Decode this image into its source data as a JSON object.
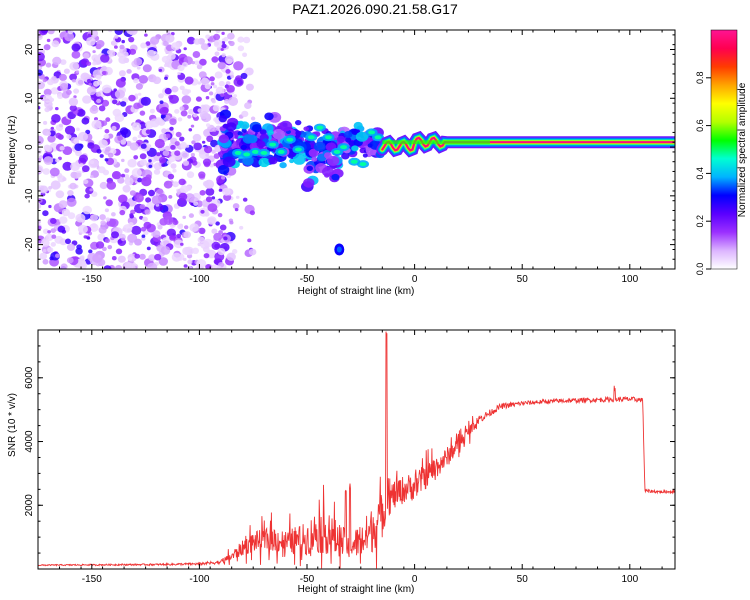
{
  "title": "PAZ1.2026.090.21.58.G17",
  "chart_data": [
    {
      "type": "heatmap",
      "title": "PAZ1.2026.090.21.58.G17",
      "xlabel": "Height of straight line (km)",
      "ylabel": "Frequency (Hz)",
      "xlim": [
        -175,
        121
      ],
      "ylim": [
        -25,
        24
      ],
      "xticks": [
        -150,
        -100,
        -50,
        0,
        50,
        100
      ],
      "xtick_labels": [
        "-150",
        "-100",
        "-50",
        "0",
        "50",
        "100"
      ],
      "yticks": [
        -20,
        -10,
        0,
        10,
        20
      ],
      "ytick_labels": [
        "-20",
        "-10",
        "0",
        "10",
        "20"
      ],
      "colorbar": {
        "label": "Normalized spectral amplitude",
        "range": [
          0,
          1
        ],
        "ticks": [
          0.0,
          0.2,
          0.4,
          0.6,
          0.8
        ],
        "tick_labels": [
          "0.0",
          "0.2",
          "0.4",
          "0.6",
          "0.8"
        ],
        "colormap": [
          "#ffffff",
          "#dcb4ff",
          "#9b30ff",
          "#5a00ff",
          "#0000ff",
          "#00b4ff",
          "#00ffd2",
          "#00ff00",
          "#b4ff00",
          "#ffff00",
          "#ffa500",
          "#ff3c00",
          "#ff0050",
          "#ff1493"
        ]
      },
      "features": [
        {
          "name": "noise scatter",
          "x_range": [
            -175,
            -85
          ],
          "freq_range": [
            -25,
            24
          ],
          "amplitude": "0.05-0.25"
        },
        {
          "name": "transition blobs",
          "x_range": [
            -90,
            -15
          ],
          "freq_range": [
            -8,
            8
          ],
          "amplitude": "0.2-0.5"
        },
        {
          "name": "isolated blob",
          "x": -35,
          "freq": -21,
          "amplitude": 0.2
        },
        {
          "name": "carrier line",
          "x_range": [
            -15,
            121
          ],
          "freq": 1,
          "amplitude": "0.6-1.0"
        }
      ]
    },
    {
      "type": "line",
      "xlabel": "Height of straight line (km)",
      "ylabel": "SNR (10 * v/v)",
      "xlim": [
        -175,
        121
      ],
      "ylim": [
        0,
        7500
      ],
      "xticks": [
        -150,
        -100,
        -50,
        0,
        50,
        100
      ],
      "xtick_labels": [
        "-150",
        "-100",
        "-50",
        "0",
        "50",
        "100"
      ],
      "yticks": [
        2000,
        4000,
        6000
      ],
      "ytick_labels": [
        "2000",
        "4000",
        "6000"
      ],
      "color": "#ee3333",
      "series": [
        {
          "name": "SNR",
          "x": [
            -175,
            -150,
            -120,
            -100,
            -90,
            -85,
            -80,
            -75,
            -70,
            -65,
            -60,
            -55,
            -50,
            -45,
            -40,
            -35,
            -30,
            -25,
            -20,
            -15,
            -13,
            -10,
            -5,
            0,
            5,
            10,
            15,
            20,
            25,
            30,
            35,
            40,
            50,
            60,
            70,
            80,
            90,
            100,
            106,
            107,
            115,
            121
          ],
          "y": [
            120,
            130,
            140,
            160,
            220,
            400,
            650,
            850,
            900,
            950,
            820,
            900,
            950,
            1200,
            1100,
            900,
            700,
            900,
            1200,
            1700,
            2100,
            2300,
            2500,
            2600,
            2900,
            3200,
            3500,
            3900,
            4300,
            4700,
            4900,
            5100,
            5200,
            5250,
            5280,
            5300,
            5320,
            5330,
            5300,
            2450,
            2420,
            2430
          ],
          "noise": [
            20,
            25,
            30,
            40,
            80,
            200,
            300,
            400,
            450,
            500,
            500,
            550,
            650,
            900,
            800,
            700,
            500,
            700,
            900,
            900,
            700,
            600,
            550,
            550,
            500,
            450,
            400,
            300,
            250,
            150,
            120,
            100,
            80,
            80,
            80,
            80,
            90,
            90,
            80,
            60,
            50,
            50
          ],
          "peaks": [
            {
              "x": -13,
              "y": 7500
            },
            {
              "x": -30,
              "y": 2700
            },
            {
              "x": -32,
              "y": 2500
            },
            {
              "x": 93,
              "y": 5750
            }
          ]
        }
      ]
    }
  ]
}
